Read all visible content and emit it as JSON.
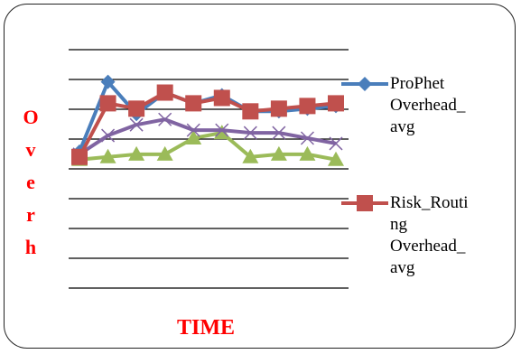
{
  "chart_data": {
    "type": "line",
    "ylabel": "Overh",
    "xlabel": "TIME",
    "x": [
      1,
      2,
      3,
      4,
      5,
      6,
      7,
      8,
      9,
      10
    ],
    "ylim": [
      0,
      10
    ],
    "grid": true,
    "legend_position": "right",
    "series": [
      {
        "name": "ProPhet\nOverhead_\navg",
        "color": "#4a7ebb",
        "marker": "diamond",
        "values": [
          6.2,
          8.8,
          7.6,
          8.4,
          8.0,
          8.3,
          7.7,
          7.7,
          7.8,
          7.9
        ]
      },
      {
        "name": "Risk_Routi\nng\nOverhead_\navg",
        "color": "#c0504d",
        "marker": "square",
        "values": [
          6.0,
          8.0,
          7.8,
          8.4,
          8.0,
          8.2,
          7.7,
          7.8,
          7.9,
          8.0
        ]
      },
      {
        "name": "",
        "color": "#9bbb59",
        "marker": "triangle",
        "values": [
          5.9,
          6.0,
          6.1,
          6.1,
          6.7,
          6.9,
          6.0,
          6.1,
          6.1,
          5.9
        ]
      },
      {
        "name": "",
        "color": "#8064a2",
        "marker": "x",
        "values": [
          6.1,
          6.8,
          7.2,
          7.4,
          7.0,
          7.0,
          6.9,
          6.9,
          6.7,
          6.5
        ]
      }
    ]
  }
}
